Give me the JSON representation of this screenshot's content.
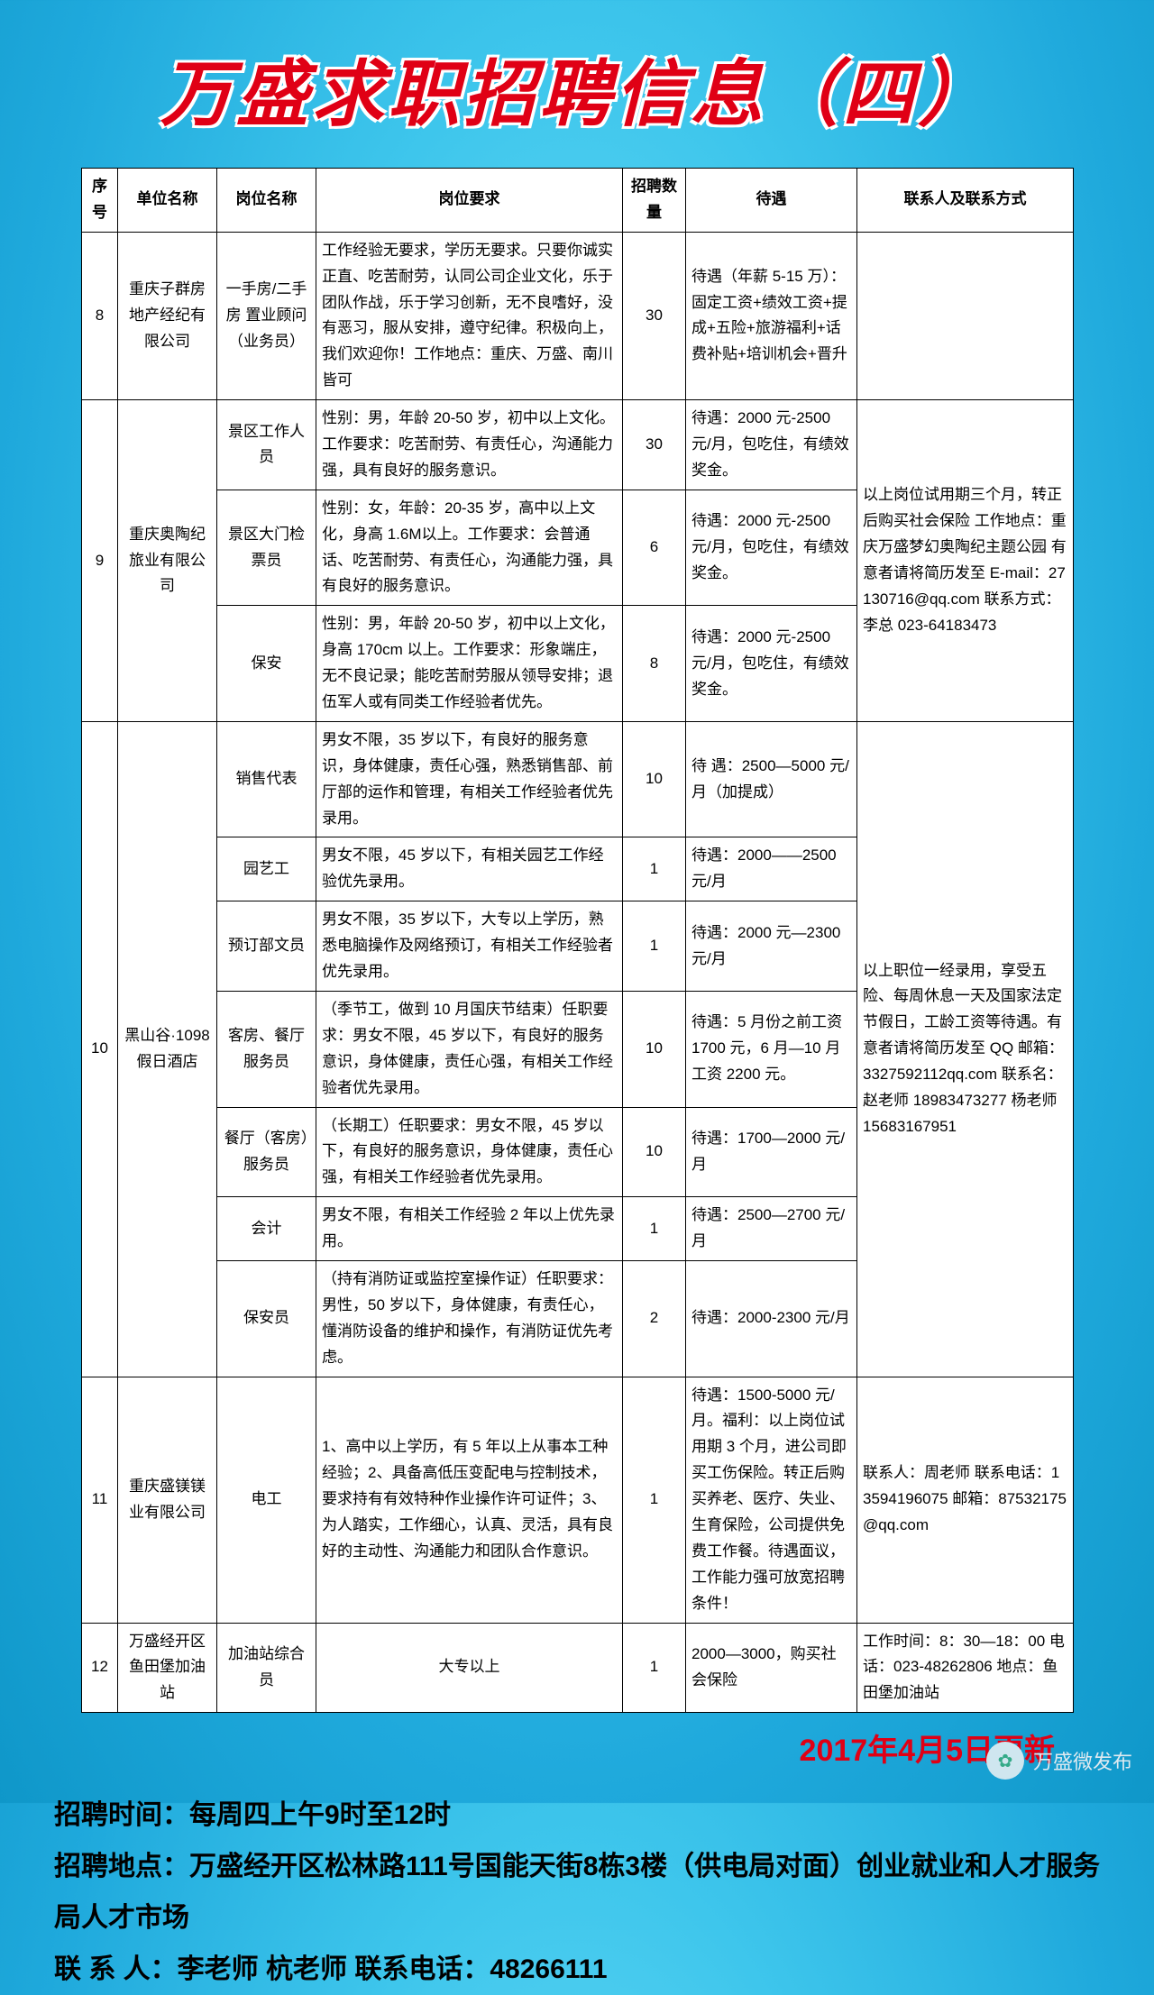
{
  "title": "万盛求职招聘信息（四）",
  "update": "2017年4月5日更新",
  "headers": {
    "seq": "序号",
    "company": "单位名称",
    "position": "岗位名称",
    "requirement": "岗位要求",
    "qty": "招聘数量",
    "pay": "待遇",
    "contact": "联系人及联系方式"
  },
  "rows": {
    "r8": {
      "seq": "8",
      "company": "重庆子群房地产经纪有限公司",
      "position": "一手房/二手房 置业顾问（业务员）",
      "req": "工作经验无要求，学历无要求。只要你诚实正直、吃苦耐劳，认同公司企业文化，乐于团队作战，乐于学习创新，无不良嗜好，没有恶习，服从安排，遵守纪律。积极向上，我们欢迎你！工作地点：重庆、万盛、南川皆可",
      "qty": "30",
      "pay": "待遇（年薪 5-15 万）：固定工资+绩效工资+提成+五险+旅游福利+话费补贴+培训机会+晋升",
      "contact": ""
    },
    "r9a": {
      "position": "景区工作人员",
      "req": "性别：男，年龄 20-50 岁，初中以上文化。工作要求：吃苦耐劳、有责任心，沟通能力强，具有良好的服务意识。",
      "qty": "30",
      "pay": "待遇：2000 元-2500 元/月，包吃住，有绩效奖金。"
    },
    "r9b": {
      "position": "景区大门检票员",
      "req": "性别：女，年龄：20-35 岁，高中以上文化，身高 1.6M以上。工作要求：会普通话、吃苦耐劳、有责任心，沟通能力强，具有良好的服务意识。",
      "qty": "6",
      "pay": "待遇：2000 元-2500 元/月，包吃住，有绩效奖金。"
    },
    "r9c": {
      "position": "保安",
      "req": "性别：男，年龄 20-50 岁，初中以上文化，身高 170cm 以上。工作要求：形象端庄，无不良记录；能吃苦耐劳服从领导安排；退伍军人或有同类工作经验者优先。",
      "qty": "8",
      "pay": "待遇：2000 元-2500 元/月，包吃住，有绩效奖金。"
    },
    "r9": {
      "seq": "9",
      "company": "重庆奥陶纪旅业有限公司",
      "contact": "以上岗位试用期三个月，转正后购买社会保险 工作地点：重庆万盛梦幻奥陶纪主题公园 有意者请将简历发至 E-mail：27130716@qq.com 联系方式：李总 023-64183473"
    },
    "r10a": {
      "position": "销售代表",
      "req": "男女不限，35 岁以下，有良好的服务意识，身体健康，责任心强，熟悉销售部、前厅部的运作和管理，有相关工作经验者优先录用。",
      "qty": "10",
      "pay": "待 遇：2500—5000 元/月（加提成）"
    },
    "r10b": {
      "position": "园艺工",
      "req": "男女不限，45 岁以下，有相关园艺工作经验优先录用。",
      "qty": "1",
      "pay": "待遇：2000——2500 元/月"
    },
    "r10c": {
      "position": "预订部文员",
      "req": "男女不限，35 岁以下，大专以上学历，熟悉电脑操作及网络预订，有相关工作经验者优先录用。",
      "qty": "1",
      "pay": "待遇：2000 元—2300 元/月"
    },
    "r10d": {
      "position": "客房、餐厅服务员",
      "req": "（季节工，做到 10 月国庆节结束）任职要求：男女不限，45 岁以下，有良好的服务意识，身体健康，责任心强，有相关工作经验者优先录用。",
      "qty": "10",
      "pay": "待遇：5 月份之前工资 1700 元，6 月—10 月工资 2200 元。"
    },
    "r10e": {
      "position": "餐厅（客房）服务员",
      "req": "（长期工）任职要求：男女不限，45 岁以下，有良好的服务意识，身体健康，责任心强，有相关工作经验者优先录用。",
      "qty": "10",
      "pay": "待遇：1700—2000 元/月"
    },
    "r10f": {
      "position": "会计",
      "req": "男女不限，有相关工作经验 2 年以上优先录用。",
      "qty": "1",
      "pay": "待遇：2500—2700 元/月"
    },
    "r10g": {
      "position": "保安员",
      "req": "（持有消防证或监控室操作证）任职要求：男性，50 岁以下，身体健康，有责任心，懂消防设备的维护和操作，有消防证优先考虑。",
      "qty": "2",
      "pay": "待遇：2000-2300 元/月"
    },
    "r10": {
      "seq": "10",
      "company": "黑山谷·1098 假日酒店",
      "contact": "以上职位一经录用，享受五险、每周休息一天及国家法定节假日，工龄工资等待遇。有意者请将简历发至 QQ 邮箱：3327592112qq.com 联系名：赵老师 18983473277 杨老师 15683167951"
    },
    "r11": {
      "seq": "11",
      "company": "重庆盛镁镁业有限公司",
      "position": "电工",
      "req": "1、高中以上学历，有 5 年以上从事本工种经验；2、具备高低压变配电与控制技术，要求持有有效特种作业操作许可证件；3、为人踏实，工作细心，认真、灵活，具有良好的主动性、沟通能力和团队合作意识。",
      "qty": "1",
      "pay": "待遇：1500-5000 元/月。福利：以上岗位试用期 3 个月，进公司即买工伤保险。转正后购买养老、医疗、失业、生育保险，公司提供免费工作餐。待遇面议，工作能力强可放宽招聘条件！",
      "contact": "联系人：周老师 联系电话：13594196075 邮箱：87532175@qq.com"
    },
    "r12": {
      "seq": "12",
      "company": "万盛经开区鱼田堡加油站",
      "position": "加油站综合员",
      "req": "大专以上",
      "qty": "1",
      "pay": "2000—3000，购买社会保险",
      "contact": "工作时间：8：30—18：00 电话：023-48262806 地点：鱼田堡加油站"
    }
  },
  "footer": {
    "l1": "招聘时间：每周四上午9时至12时",
    "l2": "招聘地点：万盛经开区松林路111号国能天街8栋3楼（供电局对面）创业就业和人才服务局人才市场",
    "l3": "联 系 人：李老师 杭老师    联系电话：48266111"
  },
  "watermark": "万盛微发布"
}
